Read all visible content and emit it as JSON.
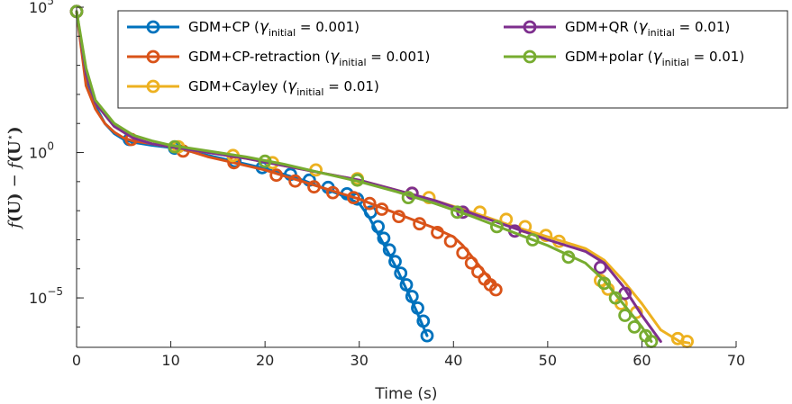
{
  "chart_data": {
    "type": "line",
    "title": "",
    "xlabel": "Time (s)",
    "ylabel_parts": {
      "f1": "f",
      "arg1": "(U)",
      "minus": "−",
      "f2": "f",
      "arg2": "(U",
      "star": "⋆",
      "close": ")"
    },
    "yscale": "log",
    "xlim": [
      0,
      70
    ],
    "ylim_log10": [
      -6.7,
      5
    ],
    "x_ticks": [
      "0",
      "10",
      "20",
      "30",
      "40",
      "50",
      "60",
      "70"
    ],
    "y_ticks": [
      {
        "base": "10",
        "exp": "5",
        "log10": 5
      },
      {
        "base": "10",
        "exp": "0",
        "log10": 0
      },
      {
        "base": "10",
        "exp": "−5",
        "log10": -5
      }
    ],
    "series": [
      {
        "name_main": "GDM+CP (",
        "name_sub": "initial",
        "name_tail": " = 0.001)",
        "color": "#0072BD",
        "x": [
          0,
          1,
          2,
          3,
          4,
          5,
          6,
          8,
          10,
          12,
          14,
          16,
          18,
          20,
          22,
          24,
          26,
          28,
          30,
          31,
          32,
          33,
          34,
          35,
          36,
          37.2
        ],
        "y_log10": [
          4.85,
          2.6,
          1.6,
          1.0,
          0.65,
          0.45,
          0.35,
          0.25,
          0.17,
          0.05,
          -0.1,
          -0.25,
          -0.4,
          -0.55,
          -0.75,
          -0.95,
          -1.2,
          -1.45,
          -1.75,
          -2.2,
          -2.8,
          -3.4,
          -4.0,
          -4.7,
          -5.4,
          -6.3
        ],
        "marker_x": [
          0,
          5.6,
          10.4,
          16.8,
          19.7,
          22.7,
          24.7,
          26.7,
          28.7,
          29.8,
          31.2,
          32.0,
          32.6,
          33.2,
          33.8,
          34.4,
          35.0,
          35.6,
          36.2,
          36.8,
          37.2
        ],
        "marker_y_log10": [
          4.85,
          0.45,
          0.15,
          -0.3,
          -0.52,
          -0.75,
          -0.95,
          -1.2,
          -1.42,
          -1.6,
          -2.05,
          -2.55,
          -2.95,
          -3.35,
          -3.75,
          -4.15,
          -4.55,
          -4.95,
          -5.35,
          -5.8,
          -6.3
        ]
      },
      {
        "name_main": "GDM+CP-retraction (",
        "name_sub": "initial",
        "name_tail": " = 0.001)",
        "color": "#D95319",
        "x": [
          0,
          1,
          2,
          3,
          4,
          5,
          6,
          8,
          10,
          12,
          14,
          16,
          18,
          20,
          22,
          24,
          26,
          28,
          30,
          32,
          34,
          36,
          38,
          40,
          41,
          42,
          43,
          44,
          44.5
        ],
        "y_log10": [
          4.85,
          2.3,
          1.5,
          1.0,
          0.7,
          0.5,
          0.4,
          0.3,
          0.2,
          0.05,
          -0.15,
          -0.3,
          -0.45,
          -0.6,
          -0.8,
          -1.0,
          -1.2,
          -1.4,
          -1.6,
          -1.85,
          -2.1,
          -2.35,
          -2.6,
          -2.9,
          -3.2,
          -3.6,
          -4.0,
          -4.4,
          -4.6
        ],
        "marker_x": [
          0,
          5.8,
          11.3,
          16.7,
          21.2,
          23.2,
          25.2,
          27.2,
          29.4,
          31.1,
          32.4,
          34.2,
          36.4,
          38.3,
          39.7,
          41.0,
          41.9,
          42.6,
          43.3,
          43.9,
          44.5
        ],
        "marker_y_log10": [
          4.85,
          0.45,
          0.05,
          -0.35,
          -0.78,
          -0.98,
          -1.18,
          -1.38,
          -1.55,
          -1.75,
          -1.95,
          -2.2,
          -2.45,
          -2.75,
          -3.05,
          -3.45,
          -3.8,
          -4.1,
          -4.35,
          -4.55,
          -4.72
        ]
      },
      {
        "name_main": "GDM+Cayley (",
        "name_sub": "initial",
        "name_tail": " = 0.01)",
        "color": "#EDB120",
        "x": [
          0,
          1,
          2,
          4,
          6,
          8,
          10,
          14,
          18,
          22,
          26,
          30,
          34,
          38,
          42,
          46,
          50,
          54,
          56,
          58,
          60,
          62,
          64,
          65
        ],
        "y_log10": [
          4.85,
          2.7,
          1.7,
          0.9,
          0.5,
          0.3,
          0.2,
          0.0,
          -0.2,
          -0.45,
          -0.7,
          -0.95,
          -1.3,
          -1.65,
          -2.05,
          -2.5,
          -2.9,
          -3.3,
          -3.7,
          -4.4,
          -5.2,
          -6.1,
          -6.5,
          -6.55
        ],
        "marker_x": [
          0,
          10.8,
          16.6,
          20.8,
          25.4,
          29.8,
          35.6,
          37.4,
          42.8,
          45.6,
          47.6,
          49.8,
          51.2,
          55.6,
          56.4,
          57.8,
          59.4,
          63.8,
          64.8
        ],
        "marker_y_log10": [
          4.85,
          0.2,
          -0.1,
          -0.35,
          -0.6,
          -0.9,
          -1.4,
          -1.55,
          -2.05,
          -2.3,
          -2.55,
          -2.85,
          -3.05,
          -4.4,
          -4.7,
          -5.2,
          -5.5,
          -6.4,
          -6.5
        ]
      },
      {
        "name_main": "GDM+QR (",
        "name_sub": "initial",
        "name_tail": " = 0.01)",
        "color": "#7E2F8E",
        "x": [
          0,
          1,
          2,
          4,
          6,
          8,
          10,
          14,
          18,
          22,
          26,
          30,
          34,
          38,
          42,
          46,
          50,
          54,
          56,
          58,
          60,
          62
        ],
        "y_log10": [
          4.85,
          2.7,
          1.7,
          0.9,
          0.5,
          0.3,
          0.2,
          0.0,
          -0.2,
          -0.45,
          -0.7,
          -0.95,
          -1.3,
          -1.65,
          -2.1,
          -2.55,
          -3.0,
          -3.4,
          -3.8,
          -4.6,
          -5.6,
          -6.5
        ],
        "marker_x": [
          0,
          35.6,
          41.0,
          46.5,
          55.6,
          58.2
        ],
        "marker_y_log10": [
          4.85,
          -1.4,
          -2.05,
          -2.7,
          -3.95,
          -4.85
        ]
      },
      {
        "name_main": "GDM+polar (",
        "name_sub": "initial",
        "name_tail": " = 0.01)",
        "color": "#77AC30",
        "x": [
          0,
          1,
          2,
          4,
          6,
          8,
          10,
          14,
          18,
          22,
          26,
          30,
          34,
          38,
          42,
          46,
          50,
          54,
          56,
          58,
          60,
          61
        ],
        "y_log10": [
          4.85,
          2.9,
          1.8,
          1.0,
          0.6,
          0.4,
          0.25,
          0.05,
          -0.15,
          -0.4,
          -0.7,
          -1.0,
          -1.35,
          -1.75,
          -2.2,
          -2.7,
          -3.2,
          -3.8,
          -4.4,
          -5.2,
          -6.0,
          -6.5
        ],
        "marker_x": [
          0,
          10.4,
          20.0,
          29.8,
          35.2,
          40.4,
          44.6,
          48.4,
          52.2,
          56.0,
          57.2,
          58.2,
          59.2,
          60.4,
          61.0
        ],
        "marker_y_log10": [
          4.85,
          0.2,
          -0.3,
          -0.95,
          -1.55,
          -2.05,
          -2.55,
          -3.0,
          -3.6,
          -4.5,
          -5.0,
          -5.6,
          -6.0,
          -6.3,
          -6.5
        ]
      }
    ]
  }
}
